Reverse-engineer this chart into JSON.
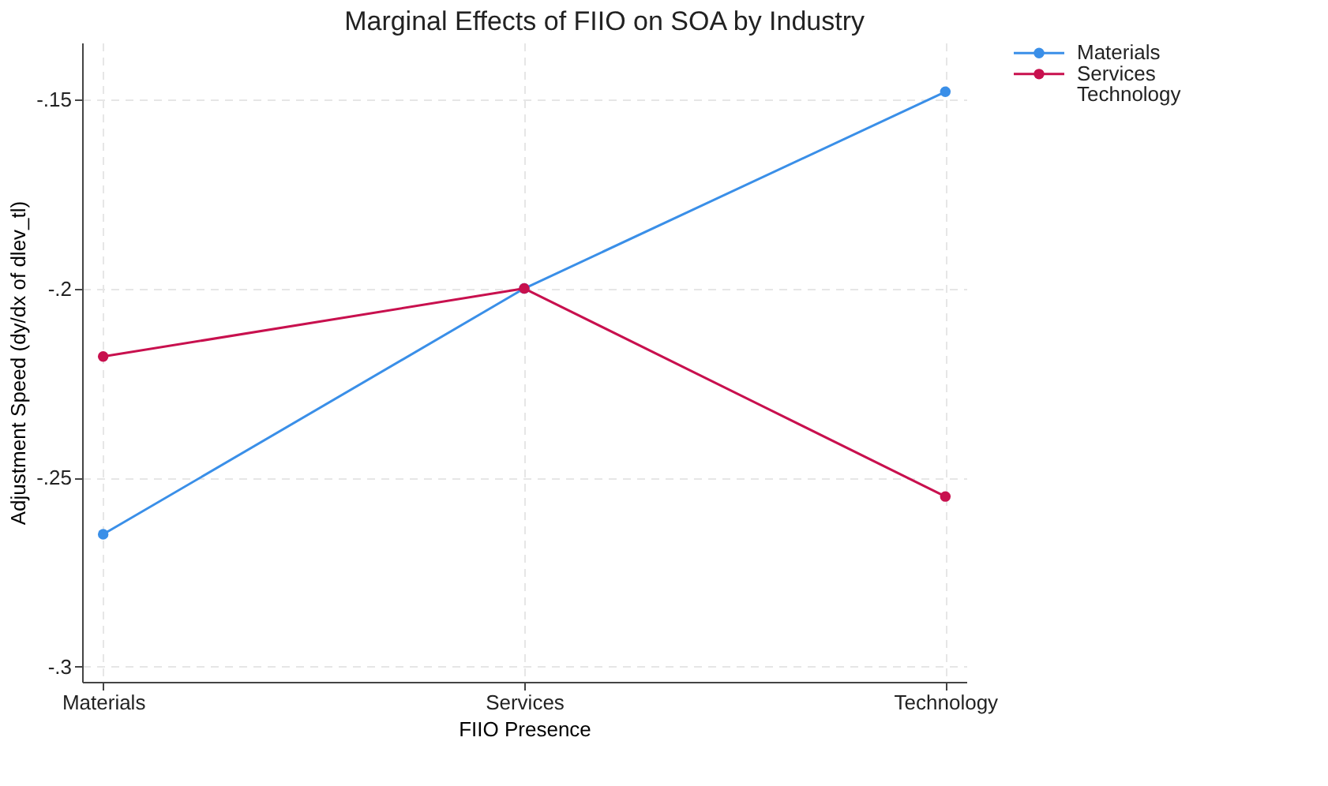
{
  "chart_data": {
    "type": "line",
    "title": "Marginal Effects of FIIO on SOA by Industry",
    "xlabel": "FIIO Presence",
    "ylabel": "Adjustment Speed (dy/dx of dlev_tl)",
    "categories": [
      "Materials",
      "Services",
      "Technology"
    ],
    "series": [
      {
        "name": "Materials",
        "color": "#3a8fe8",
        "values": [
          -0.265,
          -0.2,
          -0.148
        ]
      },
      {
        "name": "Services",
        "color": "#c8104e",
        "values": [
          -0.218,
          -0.2,
          -0.255
        ]
      },
      {
        "name": "Technology",
        "values": [
          null,
          null,
          null
        ]
      }
    ],
    "ylim": [
      -0.304,
      -0.135
    ],
    "yticks": [
      {
        "value": -0.3,
        "label": "-.3"
      },
      {
        "value": -0.25,
        "label": "-.25"
      },
      {
        "value": -0.2,
        "label": "-.2"
      },
      {
        "value": -0.15,
        "label": "-.15"
      }
    ],
    "grid": true,
    "legend": "right",
    "marker": "circle",
    "line_style": "solid"
  }
}
